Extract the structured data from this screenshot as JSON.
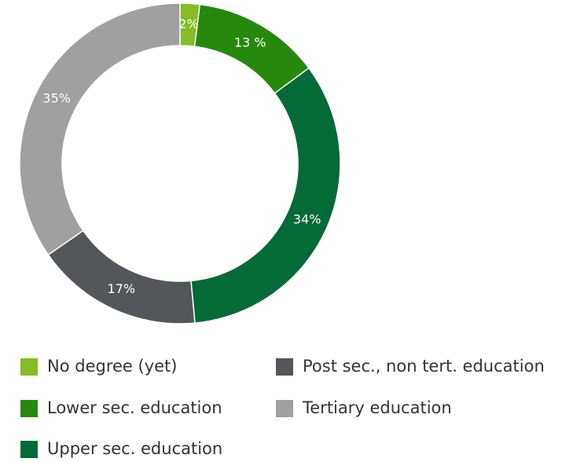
{
  "chart_data": {
    "type": "donut",
    "categories": [
      "No degree (yet)",
      "Lower sec. education",
      "Upper sec. education",
      "Post sec., non tert. education",
      "Tertiary education"
    ],
    "values": [
      2,
      13,
      34,
      17,
      35
    ],
    "value_labels": [
      "2%",
      "13 %",
      "34%",
      "17%",
      "35%"
    ],
    "colors": [
      "#86bc25",
      "#26890d",
      "#046a38",
      "#53565a",
      "#a0a0a0"
    ]
  }
}
